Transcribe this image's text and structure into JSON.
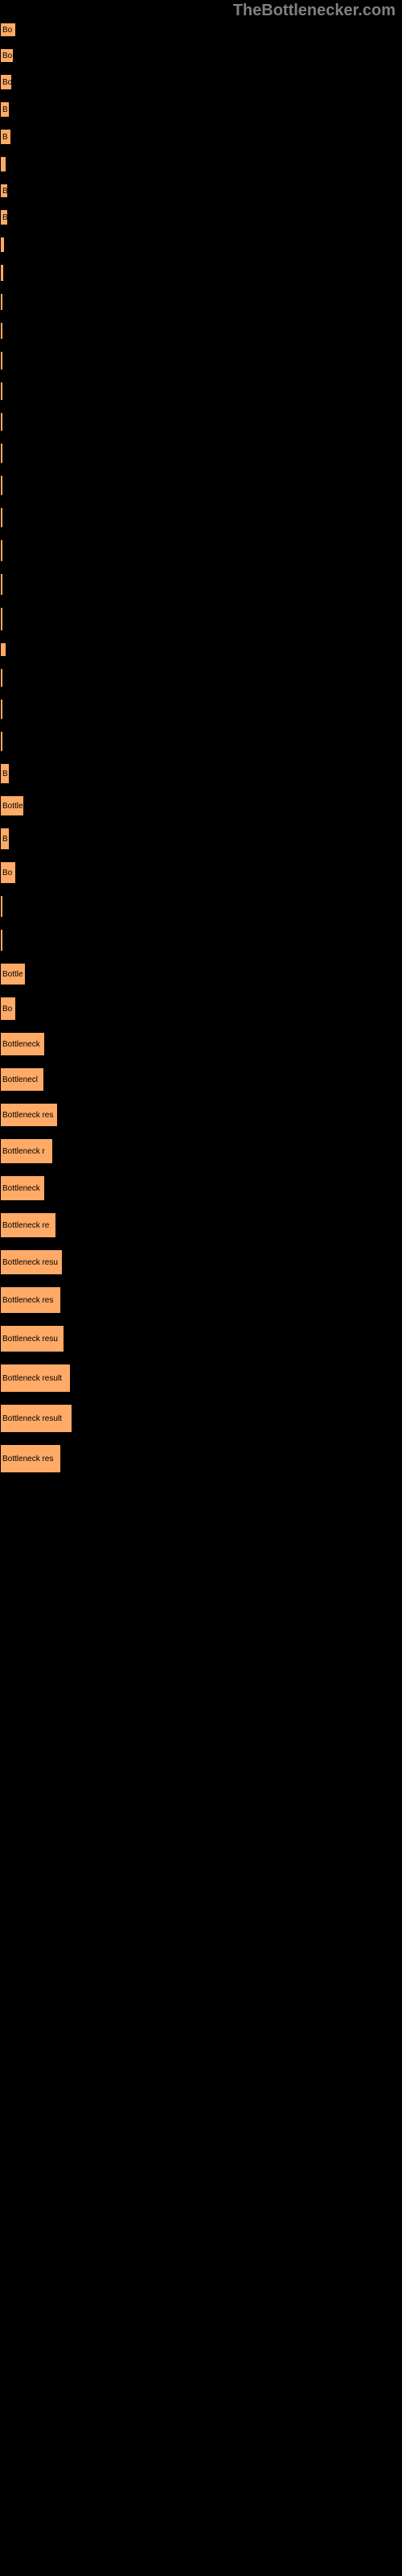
{
  "watermark": "TheBottlenecker.com",
  "chart": {
    "type": "bar",
    "bar_color": "#ffaa66",
    "bar_border_color": "#000000",
    "background_color": "#000000",
    "text_color": "#000000",
    "watermark_color": "#808080",
    "font_size": 10,
    "bars": [
      {
        "label": "Bo",
        "width": 20,
        "height": 18
      },
      {
        "label": "Bo",
        "width": 17,
        "height": 18
      },
      {
        "label": "Bo",
        "width": 15,
        "height": 20
      },
      {
        "label": "B",
        "width": 12,
        "height": 20
      },
      {
        "label": "B",
        "width": 14,
        "height": 20
      },
      {
        "label": "",
        "width": 8,
        "height": 20
      },
      {
        "label": "B",
        "width": 10,
        "height": 18
      },
      {
        "label": "B",
        "width": 10,
        "height": 20
      },
      {
        "label": "",
        "width": 6,
        "height": 20
      },
      {
        "label": "",
        "width": 5,
        "height": 22
      },
      {
        "label": "",
        "width": 2,
        "height": 22
      },
      {
        "label": "",
        "width": 2,
        "height": 22
      },
      {
        "label": "",
        "width": 2,
        "height": 24
      },
      {
        "label": "",
        "width": 2,
        "height": 24
      },
      {
        "label": "",
        "width": 2,
        "height": 24
      },
      {
        "label": "",
        "width": 2,
        "height": 26
      },
      {
        "label": "",
        "width": 2,
        "height": 26
      },
      {
        "label": "",
        "width": 2,
        "height": 26
      },
      {
        "label": "",
        "width": 2,
        "height": 28
      },
      {
        "label": "",
        "width": 2,
        "height": 28
      },
      {
        "label": "",
        "width": 2,
        "height": 30
      },
      {
        "label": "",
        "width": 8,
        "height": 2
      },
      {
        "label": "",
        "width": 2,
        "height": 24
      },
      {
        "label": "",
        "width": 2,
        "height": 26
      },
      {
        "label": "",
        "width": 2,
        "height": 26
      },
      {
        "label": "B",
        "width": 12,
        "height": 26
      },
      {
        "label": "Bottle",
        "width": 30,
        "height": 26
      },
      {
        "label": "B",
        "width": 12,
        "height": 28
      },
      {
        "label": "Bo",
        "width": 20,
        "height": 28
      },
      {
        "label": "",
        "width": 2,
        "height": 28
      },
      {
        "label": "",
        "width": 2,
        "height": 28
      },
      {
        "label": "Bottle",
        "width": 32,
        "height": 28
      },
      {
        "label": "Bo",
        "width": 20,
        "height": 30
      },
      {
        "label": "Bottleneck",
        "width": 56,
        "height": 30
      },
      {
        "label": "Bottlenecl",
        "width": 55,
        "height": 30
      },
      {
        "label": "Bottleneck res",
        "width": 72,
        "height": 30
      },
      {
        "label": "Bottleneck r",
        "width": 66,
        "height": 32
      },
      {
        "label": "Bottleneck",
        "width": 56,
        "height": 32
      },
      {
        "label": "Bottleneck re",
        "width": 70,
        "height": 32
      },
      {
        "label": "Bottleneck resu",
        "width": 78,
        "height": 32
      },
      {
        "label": "Bottleneck res",
        "width": 76,
        "height": 34
      },
      {
        "label": "Bottleneck resu",
        "width": 80,
        "height": 34
      },
      {
        "label": "Bottleneck result",
        "width": 88,
        "height": 36
      },
      {
        "label": "Bottleneck result",
        "width": 90,
        "height": 36
      },
      {
        "label": "Bottleneck res",
        "width": 76,
        "height": 36
      }
    ]
  }
}
